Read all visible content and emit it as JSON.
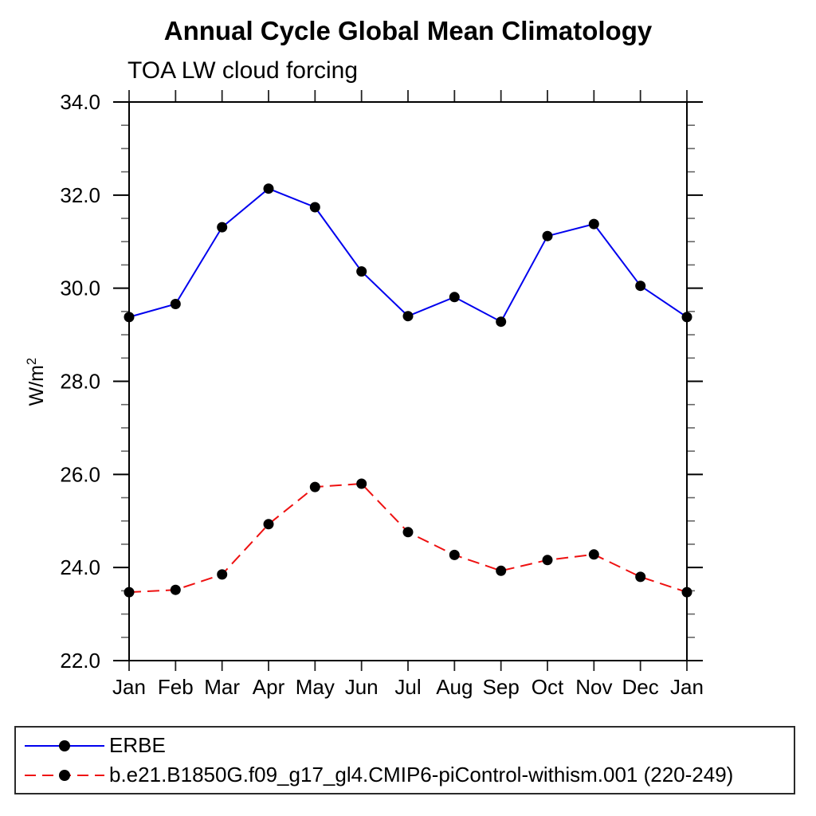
{
  "title": "Annual Cycle Global Mean Climatology",
  "subtitle": "TOA LW cloud forcing",
  "ylabel": {
    "base": "W/m",
    "exponent": "2"
  },
  "colors": {
    "erbe_line": "#0000ee",
    "model_line": "#ee1111",
    "marker": "#000000",
    "axis": "#000000",
    "minor_tick": "#666666"
  },
  "legend": {
    "items": [
      {
        "label": "ERBE",
        "style": "solid",
        "color": "#0000ee"
      },
      {
        "label": "b.e21.B1850G.f09_g17_gl4.CMIP6-piControl-withism.001 (220-249)",
        "style": "dashed",
        "color": "#ee1111"
      }
    ]
  },
  "chart_data": {
    "type": "line",
    "title": "Annual Cycle Global Mean Climatology",
    "subtitle": "TOA LW cloud forcing",
    "xlabel": "",
    "ylabel": "W/m2",
    "categories": [
      "Jan",
      "Feb",
      "Mar",
      "Apr",
      "May",
      "Jun",
      "Jul",
      "Aug",
      "Sep",
      "Oct",
      "Nov",
      "Dec",
      "Jan"
    ],
    "series": [
      {
        "name": "ERBE",
        "color": "#0000ee",
        "line_style": "solid",
        "marker": "filled-black-circle",
        "values": [
          29.38,
          29.66,
          31.31,
          32.14,
          31.74,
          30.36,
          29.4,
          29.81,
          29.28,
          31.12,
          31.38,
          30.05,
          29.38
        ]
      },
      {
        "name": "b.e21.B1850G.f09_g17_gl4.CMIP6-piControl-withism.001 (220-249)",
        "color": "#ee1111",
        "line_style": "dashed",
        "marker": "filled-black-circle",
        "values": [
          23.47,
          23.52,
          23.85,
          24.93,
          25.73,
          25.8,
          24.76,
          24.27,
          23.93,
          24.16,
          24.28,
          23.8,
          23.47
        ]
      }
    ],
    "ylim": [
      22.0,
      34.0
    ],
    "ytick_step": 2.0,
    "ytick_minor_step": 0.5,
    "ytick_labels": [
      "22.0",
      "24.0",
      "26.0",
      "28.0",
      "30.0",
      "32.0",
      "34.0"
    ],
    "grid": false,
    "legend_position": "bottom-box"
  }
}
